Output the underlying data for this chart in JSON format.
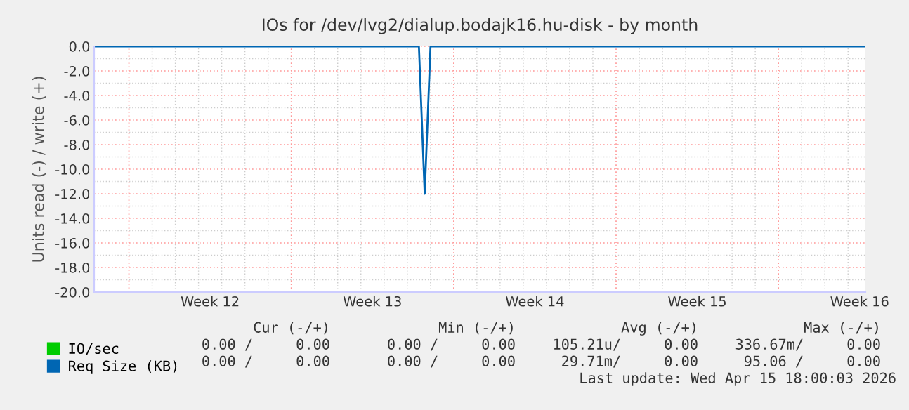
{
  "chart_data": {
    "type": "line",
    "title": "IOs for /dev/lvg2/dialup.bodajk16.hu-disk - by month",
    "ylabel": "Units read (-) / write (+)",
    "categories": [
      null,
      null,
      null,
      null,
      null,
      null,
      null,
      null,
      null,
      null,
      null,
      null,
      null,
      null,
      null,
      null,
      null,
      null,
      null,
      null,
      "Week 12",
      null,
      null,
      null,
      null,
      null,
      null,
      null,
      null,
      null,
      null,
      null,
      null,
      null,
      null,
      null,
      null,
      null,
      null,
      null,
      null,
      null,
      null,
      null,
      null,
      null,
      null,
      null,
      "Week 13",
      null,
      null,
      null,
      null,
      null,
      null,
      null,
      null,
      null,
      null,
      null,
      null,
      null,
      null,
      null,
      null,
      null,
      null,
      null,
      null,
      null,
      null,
      null,
      null,
      null,
      null,
      null,
      "Week 14",
      null,
      null,
      null,
      null,
      null,
      null,
      null,
      null,
      null,
      null,
      null,
      null,
      null,
      null,
      null,
      null,
      null,
      null,
      null,
      null,
      null,
      null,
      null,
      null,
      null,
      null,
      null,
      "Week 15",
      null,
      null,
      null,
      null,
      null,
      null,
      null,
      null,
      null,
      null,
      null,
      null,
      null,
      null,
      null,
      null,
      null,
      null,
      null,
      null,
      null,
      null,
      null,
      null,
      null,
      null,
      null,
      "Week 16",
      null
    ],
    "series": [
      {
        "name": "IO/sec",
        "color": "#00cc00",
        "values": [
          null,
          null,
          null,
          null,
          null,
          null,
          null,
          null,
          null,
          null,
          null,
          null,
          null,
          null,
          null,
          null,
          null,
          null,
          null,
          null,
          null,
          null,
          null,
          null,
          null,
          null,
          null,
          null,
          null,
          null,
          null,
          null,
          null,
          null,
          null,
          null,
          null,
          null,
          null,
          null,
          null,
          null,
          null,
          null,
          null,
          null,
          null,
          null,
          null,
          null,
          null,
          null,
          null,
          null,
          null,
          null,
          null,
          null,
          null,
          null,
          null,
          null,
          null,
          null,
          null,
          null,
          null,
          null,
          null,
          null,
          null,
          null,
          null,
          null,
          null,
          null,
          null,
          null,
          null,
          null,
          null,
          null,
          null,
          null,
          null,
          null,
          null,
          null,
          null,
          null,
          null,
          null,
          null,
          null,
          null,
          null,
          null,
          null,
          null,
          null,
          null,
          null,
          null,
          null,
          null,
          null,
          null,
          null,
          null,
          null,
          null,
          null,
          null,
          null,
          null,
          null,
          null,
          null,
          null,
          null,
          null,
          null,
          null,
          null,
          null,
          null,
          null,
          null,
          null,
          null,
          null,
          null,
          null,
          null
        ]
      },
      {
        "name": "Req Size (KB)",
        "color": "#0066b3",
        "values": [
          0,
          0,
          0,
          0,
          0,
          0,
          0,
          0,
          0,
          0,
          0,
          0,
          0,
          0,
          0,
          0,
          0,
          0,
          0,
          0,
          0,
          0,
          0,
          0,
          0,
          0,
          0,
          0,
          0,
          0,
          0,
          0,
          0,
          0,
          0,
          0,
          0,
          0,
          0,
          0,
          0,
          0,
          0,
          0,
          0,
          0,
          0,
          0,
          0,
          0,
          0,
          0,
          0,
          0,
          0,
          0,
          0,
          -12,
          0,
          0,
          0,
          0,
          0,
          0,
          0,
          0,
          0,
          0,
          0,
          0,
          0,
          0,
          0,
          0,
          0,
          0,
          0,
          0,
          0,
          0,
          0,
          0,
          0,
          0,
          0,
          0,
          0,
          0,
          0,
          0,
          0,
          0,
          0,
          0,
          0,
          0,
          0,
          0,
          0,
          0,
          0,
          0,
          0,
          0,
          0,
          0,
          0,
          0,
          0,
          0,
          0,
          0,
          0,
          0,
          0,
          0,
          0,
          0,
          0,
          0,
          0,
          0,
          0,
          0,
          0,
          0,
          0,
          0,
          0,
          0,
          0,
          0,
          0,
          0
        ]
      }
    ],
    "ylim": [
      -20,
      0
    ],
    "yticks": [
      {
        "value": 0,
        "label": "0.0"
      },
      {
        "value": -2,
        "label": "-2.0"
      },
      {
        "value": -4,
        "label": "-4.0"
      },
      {
        "value": -6,
        "label": "-6.0"
      },
      {
        "value": -8,
        "label": "-8.0"
      },
      {
        "value": -10,
        "label": "-10.0"
      },
      {
        "value": -12,
        "label": "-12.0"
      },
      {
        "value": -14,
        "label": "-14.0"
      },
      {
        "value": -16,
        "label": "-16.0"
      },
      {
        "value": -18,
        "label": "-18.0"
      },
      {
        "value": -20,
        "label": "-20.0"
      }
    ],
    "grid": true,
    "legend": "bottom left",
    "annotations": [
      "Cur (-/+)",
      "Min (-/+)",
      "Avg (-/+)",
      "Max (-/+)",
      "0.00 /     0.00",
      "0.00 /     0.00",
      "105.21u/     0.00",
      "336.67m/     0.00",
      "0.00 /     0.00",
      "0.00 /     0.00",
      "29.71m/     0.00",
      "95.06 /     0.00",
      "Last update: Wed Apr 15 18:00:03 2026"
    ]
  }
}
